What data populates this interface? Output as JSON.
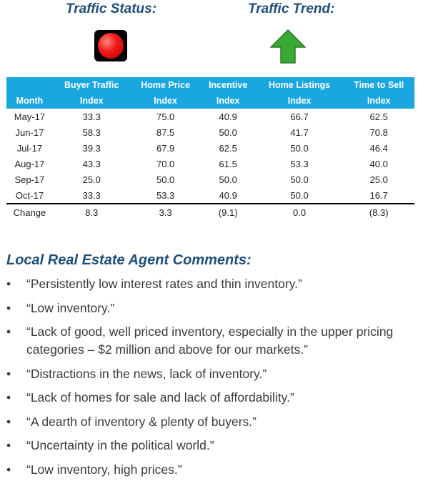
{
  "header": {
    "status_title": "Traffic Status:",
    "trend_title": "Traffic Trend:",
    "status_icon": "red-light-icon",
    "trend_icon": "up-arrow-icon",
    "status_color": "#e8191a",
    "trend_color": "#3aa935"
  },
  "table": {
    "headers": [
      {
        "line1": "",
        "line2": "Month"
      },
      {
        "line1": "Buyer Traffic",
        "line2": "Index"
      },
      {
        "line1": "Home Price",
        "line2": "Index"
      },
      {
        "line1": "Incentive",
        "line2": "Index"
      },
      {
        "line1": "Home Listings",
        "line2": "Index"
      },
      {
        "line1": "Time to Sell",
        "line2": "Index"
      }
    ],
    "rows": [
      [
        "May-17",
        "33.3",
        "75.0",
        "40.9",
        "66.7",
        "62.5"
      ],
      [
        "Jun-17",
        "58.3",
        "87.5",
        "50.0",
        "41.7",
        "70.8"
      ],
      [
        "Jul-17",
        "39.3",
        "67.9",
        "62.5",
        "50.0",
        "46.4"
      ],
      [
        "Aug-17",
        "43.3",
        "70.0",
        "61.5",
        "53.3",
        "40.0"
      ],
      [
        "Sep-17",
        "25.0",
        "50.0",
        "50.0",
        "50.0",
        "25.0"
      ],
      [
        "Oct-17",
        "33.3",
        "53.3",
        "40.9",
        "50.0",
        "16.7"
      ]
    ],
    "change": [
      "Change",
      "8.3",
      "3.3",
      "(9.1)",
      "0.0",
      "(8.3)"
    ]
  },
  "comments": {
    "title": "Local Real Estate Agent Comments:",
    "bullet": "•",
    "items": [
      "“Persistently low interest rates and thin inventory.”",
      "“Low inventory.”",
      "“Lack of good, well priced inventory, especially in the upper pricing categories – $2 million and above for our markets.”",
      "“Distractions in the news, lack of inventory.”",
      "“Lack of homes for sale and lack of affordability.”",
      "“A dearth of inventory & plenty of buyers.”",
      "“Uncertainty in the political world.”",
      "“Low inventory, high prices.”"
    ]
  }
}
